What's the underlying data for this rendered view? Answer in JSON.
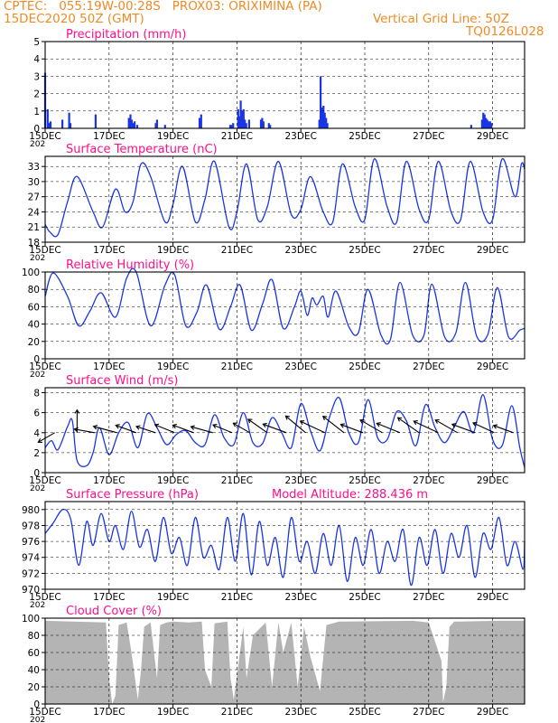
{
  "header": {
    "station_line": "CPTEC:   055:19W-00:28S   PROX03: ORIXIMINA (PA)",
    "date_line": "15DEC2020 50Z (GMT)",
    "grid_note": "Vertical Grid Line: 50Z",
    "model_code": "TQ0126L028"
  },
  "colors": {
    "header_text": "#f08a24",
    "panel_title": "#ff0e8a",
    "series_line": "#1a35e6",
    "precip_bar": "#1a35e6",
    "cloud_fill": "#b4b4b4",
    "wind_arrow": "#000000"
  },
  "x_axis": {
    "start_day": 15,
    "end_day": 30,
    "tick_labels": [
      "15DEC",
      "17DEC",
      "19DEC",
      "21DEC",
      "23DEC",
      "25DEC",
      "27DEC",
      "29DEC"
    ],
    "tick_days": [
      15,
      17,
      19,
      21,
      23,
      25,
      27,
      29
    ],
    "year_fragment": "202"
  },
  "chart_data": [
    {
      "type": "bar",
      "title": "Precipitation (mm/h)",
      "ylim": [
        0,
        5
      ],
      "y_ticks": [
        0,
        1,
        2,
        3,
        4,
        5
      ],
      "x_unit": "day",
      "x": [
        15.0,
        15.08,
        15.12,
        15.17,
        15.54,
        15.75,
        15.79,
        16.58,
        17.62,
        17.67,
        17.71,
        17.75,
        17.8,
        17.88,
        18.46,
        18.5,
        18.75,
        19.83,
        19.88,
        20.79,
        20.83,
        20.88,
        21.04,
        21.08,
        21.12,
        21.17,
        21.21,
        21.25,
        21.29,
        21.38,
        21.75,
        21.79,
        21.83,
        22.0,
        22.04,
        23.58,
        23.62,
        23.67,
        23.71,
        23.75,
        23.79,
        23.83,
        28.33,
        28.67,
        28.71,
        28.75,
        28.79,
        28.83,
        28.88,
        28.92,
        28.96
      ],
      "values": [
        3.2,
        1.1,
        0.3,
        0.4,
        0.5,
        0.9,
        0.3,
        0.8,
        0.6,
        0.8,
        0.5,
        0.3,
        0.4,
        0.2,
        0.3,
        0.5,
        0.2,
        0.6,
        0.8,
        0.2,
        0.2,
        0.3,
        1.1,
        0.7,
        1.6,
        1.0,
        1.1,
        0.5,
        0.3,
        0.5,
        0.5,
        0.6,
        0.4,
        0.3,
        0.2,
        0.5,
        3.0,
        1.2,
        1.3,
        0.9,
        0.6,
        0.3,
        0.2,
        0.5,
        0.9,
        0.8,
        0.6,
        0.5,
        0.4,
        0.4,
        0.3
      ]
    },
    {
      "type": "line",
      "title": "Surface Temperature (nC)",
      "ylim": [
        18,
        35
      ],
      "y_ticks": [
        18,
        21,
        24,
        27,
        30,
        33
      ],
      "series": [
        {
          "x": [
            15.0,
            15.15,
            15.4,
            15.7,
            16.0,
            16.5,
            16.8,
            17.2,
            17.5,
            17.75,
            18.0,
            18.3,
            18.75,
            19.0,
            19.3,
            19.7,
            20.0,
            20.3,
            20.75,
            21.0,
            21.3,
            21.65,
            21.95,
            22.3,
            22.7,
            23.0,
            23.3,
            23.7,
            24.0,
            24.3,
            24.7,
            25.0,
            25.3,
            25.7,
            26.0,
            26.3,
            26.7,
            27.0,
            27.3,
            27.7,
            28.0,
            28.3,
            28.7,
            29.0,
            29.3,
            29.7,
            29.9,
            30.0
          ],
          "values": [
            21.5,
            20.0,
            19.5,
            26.0,
            31.0,
            24.0,
            21.0,
            28.5,
            24.0,
            26.0,
            33.5,
            31.0,
            22.0,
            25.5,
            33.0,
            22.0,
            26.5,
            34.0,
            21.0,
            24.0,
            33.5,
            22.5,
            25.0,
            34.0,
            23.5,
            24.5,
            31.0,
            24.0,
            22.0,
            33.5,
            25.0,
            22.5,
            34.5,
            25.0,
            22.0,
            34.0,
            24.5,
            22.5,
            34.0,
            24.0,
            22.5,
            34.0,
            24.0,
            22.5,
            34.5,
            27.0,
            33.5,
            32.5
          ]
        }
      ]
    },
    {
      "type": "line",
      "title": "Relative Humidity (%)",
      "ylim": [
        0,
        100
      ],
      "y_ticks": [
        0,
        20,
        40,
        60,
        80,
        100
      ],
      "series": [
        {
          "x": [
            15.0,
            15.25,
            15.7,
            16.05,
            16.4,
            16.75,
            17.2,
            17.55,
            17.85,
            18.3,
            18.75,
            19.05,
            19.4,
            19.75,
            20.05,
            20.45,
            20.8,
            21.1,
            21.45,
            21.8,
            22.1,
            22.45,
            22.8,
            23.0,
            23.2,
            23.35,
            23.5,
            23.7,
            23.85,
            24.1,
            24.5,
            24.8,
            25.1,
            25.5,
            25.8,
            26.1,
            26.5,
            26.85,
            27.1,
            27.5,
            27.85,
            28.15,
            28.5,
            28.85,
            29.15,
            29.5,
            29.85,
            30.0
          ],
          "values": [
            72.0,
            99.0,
            72.0,
            38.0,
            55.0,
            76.0,
            48.0,
            93.0,
            100.0,
            38.0,
            85.0,
            97.0,
            38.0,
            54.0,
            85.0,
            34.0,
            60.0,
            85.0,
            33.0,
            63.0,
            91.0,
            35.0,
            60.0,
            78.0,
            50.0,
            70.0,
            62.0,
            72.0,
            48.0,
            78.0,
            37.0,
            30.0,
            80.0,
            28.0,
            22.0,
            88.0,
            27.0,
            27.0,
            86.0,
            25.0,
            30.0,
            88.0,
            26.0,
            28.0,
            82.0,
            25.0,
            33.0,
            35.0
          ]
        }
      ]
    },
    {
      "type": "line",
      "title": "Surface Wind (m/s)",
      "ylim": [
        0,
        8.5
      ],
      "y_ticks": [
        0,
        2,
        4,
        6,
        8
      ],
      "series": [
        {
          "x": [
            15.0,
            15.2,
            15.4,
            15.7,
            15.85,
            16.0,
            16.3,
            16.5,
            16.7,
            17.0,
            17.3,
            17.6,
            17.9,
            18.2,
            18.5,
            18.8,
            19.1,
            19.4,
            19.7,
            20.0,
            20.3,
            20.6,
            20.9,
            21.2,
            21.5,
            21.8,
            22.1,
            22.4,
            22.7,
            23.0,
            23.3,
            23.6,
            23.9,
            24.2,
            24.5,
            24.8,
            25.1,
            25.4,
            25.7,
            26.0,
            26.3,
            26.6,
            26.9,
            27.2,
            27.5,
            27.8,
            28.1,
            28.4,
            28.7,
            29.0,
            29.3,
            29.6,
            29.85,
            30.0
          ],
          "values": [
            2.5,
            3.2,
            2.3,
            4.6,
            5.2,
            1.2,
            0.7,
            2.0,
            4.5,
            1.8,
            4.0,
            5.0,
            2.5,
            5.9,
            4.5,
            2.8,
            3.8,
            4.2,
            3.0,
            2.8,
            5.8,
            3.5,
            2.8,
            6.0,
            3.0,
            2.9,
            5.5,
            4.0,
            2.5,
            6.9,
            4.2,
            2.2,
            5.6,
            7.5,
            4.0,
            3.0,
            7.3,
            3.5,
            3.3,
            6.1,
            5.2,
            2.7,
            6.8,
            4.5,
            3.0,
            4.6,
            6.1,
            4.0,
            7.8,
            3.3,
            2.7,
            6.7,
            2.5,
            0.5
          ]
        }
      ],
      "arrows": {
        "x": [
          15.3,
          16.0,
          16.55,
          17.25,
          17.85,
          18.45,
          19.05,
          19.65,
          20.25,
          20.85,
          21.4,
          21.95,
          22.55,
          23.15,
          23.75,
          24.35,
          24.95,
          25.55,
          26.1,
          26.7,
          27.3,
          27.9,
          28.45,
          29.05,
          29.65
        ],
        "speed": [
          3.5,
          4.2,
          3.8,
          4.5,
          4.0,
          3.7,
          3.9,
          4.1,
          4.2,
          3.8,
          3.5,
          4.3,
          4.6,
          4.8,
          5.0,
          4.9,
          4.4,
          4.7,
          4.6,
          4.8,
          5.0,
          4.7,
          4.5,
          4.3,
          3.9
        ],
        "dir_deg": [
          210,
          90,
          170,
          165,
          160,
          162,
          158,
          160,
          165,
          158,
          150,
          145,
          160,
          140,
          155,
          142,
          160,
          150,
          158,
          145,
          155,
          150,
          160,
          155,
          160
        ]
      }
    },
    {
      "type": "line",
      "title": "Surface Pressure (hPa)",
      "subtitle": "Model Altitude: 288.436 m",
      "ylim": [
        970,
        981
      ],
      "y_ticks": [
        970,
        972,
        974,
        976,
        978,
        980
      ],
      "series": [
        {
          "x": [
            15.0,
            15.25,
            15.55,
            15.8,
            16.05,
            16.3,
            16.5,
            16.75,
            17.0,
            17.2,
            17.45,
            17.7,
            17.95,
            18.2,
            18.45,
            18.7,
            18.95,
            19.2,
            19.45,
            19.7,
            19.95,
            20.2,
            20.45,
            20.7,
            20.95,
            21.2,
            21.45,
            21.7,
            21.95,
            22.2,
            22.45,
            22.7,
            22.95,
            23.2,
            23.45,
            23.7,
            23.95,
            24.2,
            24.45,
            24.7,
            24.95,
            25.2,
            25.45,
            25.7,
            25.95,
            26.2,
            26.45,
            26.7,
            26.95,
            27.2,
            27.45,
            27.7,
            27.95,
            28.2,
            28.45,
            28.7,
            28.95,
            29.2,
            29.45,
            29.7,
            29.95,
            30.0
          ],
          "values": [
            977.0,
            978.3,
            980.0,
            978.8,
            973.0,
            978.5,
            975.5,
            979.5,
            976.0,
            978.0,
            975.0,
            979.8,
            975.3,
            977.5,
            973.5,
            979.0,
            974.5,
            976.5,
            973.0,
            979.0,
            974.0,
            975.5,
            972.5,
            979.0,
            973.5,
            979.5,
            971.8,
            978.5,
            973.0,
            976.5,
            971.5,
            979.0,
            973.5,
            976.0,
            972.0,
            977.0,
            973.0,
            978.0,
            971.0,
            976.5,
            973.0,
            977.5,
            972.0,
            976.0,
            973.5,
            977.5,
            970.5,
            976.5,
            973.0,
            977.5,
            972.0,
            977.0,
            974.0,
            978.0,
            971.5,
            977.0,
            975.0,
            979.0,
            973.0,
            976.0,
            972.5,
            976.0
          ]
        }
      ]
    },
    {
      "type": "area",
      "title": "Cloud Cover (%)",
      "ylim": [
        0,
        100
      ],
      "y_ticks": [
        0,
        20,
        40,
        60,
        80,
        100
      ],
      "series": [
        {
          "x": [
            15.0,
            16.9,
            17.0,
            17.1,
            17.2,
            17.3,
            17.55,
            17.7,
            17.9,
            18.0,
            18.1,
            18.3,
            18.5,
            18.6,
            18.8,
            19.0,
            19.5,
            19.9,
            20.0,
            20.2,
            20.3,
            20.7,
            20.8,
            20.9,
            21.2,
            21.3,
            21.5,
            21.9,
            22.1,
            22.3,
            22.45,
            22.7,
            22.9,
            23.1,
            23.3,
            23.6,
            23.8,
            24.2,
            26.5,
            27.0,
            27.4,
            27.45,
            27.55,
            27.65,
            27.8,
            29.2,
            30.0
          ],
          "values": [
            97,
            95,
            30,
            0,
            10,
            92,
            95,
            60,
            5,
            40,
            90,
            95,
            30,
            92,
            95,
            96,
            95,
            96,
            40,
            20,
            94,
            96,
            30,
            5,
            90,
            30,
            80,
            95,
            20,
            95,
            60,
            95,
            20,
            90,
            55,
            15,
            92,
            96,
            97,
            95,
            50,
            2,
            20,
            90,
            96,
            97,
            97
          ]
        }
      ]
    }
  ]
}
